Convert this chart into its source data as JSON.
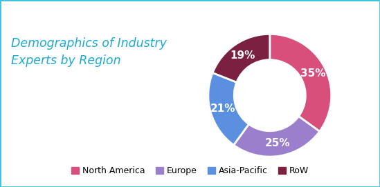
{
  "title": "Demographics of Industry\nExperts by Region",
  "title_color": "#1BAAD0",
  "title_fontsize": 12.5,
  "slices": [
    35,
    25,
    21,
    19
  ],
  "labels": [
    "North America",
    "Europe",
    "Asia-Pacific",
    "RoW"
  ],
  "pct_labels": [
    "35%",
    "25%",
    "21%",
    "19%"
  ],
  "colors": [
    "#D94F7C",
    "#9B7FCC",
    "#5B8FE0",
    "#7B2040"
  ],
  "startangle": 90,
  "background_color": "#FFFFFF",
  "border_color": "#40C0E0",
  "legend_fontsize": 9,
  "pct_fontsize": 11,
  "pct_color": "#FFFFFF",
  "donut_width": 0.42
}
